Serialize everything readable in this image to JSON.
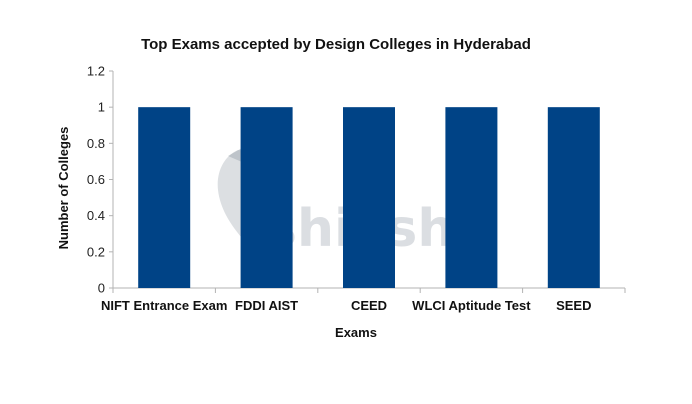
{
  "chart_data": {
    "type": "bar",
    "title": "Top Exams accepted by Design Colleges in Hyderabad",
    "xlabel": "Exams",
    "ylabel": "Number of Colleges",
    "categories": [
      "NIFT Entrance Exam",
      "FDDI AIST",
      "CEED",
      "WLCI Aptitude Test",
      "SEED"
    ],
    "values": [
      1,
      1,
      1,
      1,
      1
    ],
    "ylim": [
      0,
      1.2
    ],
    "yticks": [
      "0",
      "0.2",
      "0.4",
      "0.6",
      "0.8",
      "1",
      "1.2"
    ],
    "grid": false,
    "legend": null,
    "bar_color": "#004386"
  },
  "watermark": {
    "text": "shiksha",
    "icon": "graduate-cap-head-icon"
  }
}
